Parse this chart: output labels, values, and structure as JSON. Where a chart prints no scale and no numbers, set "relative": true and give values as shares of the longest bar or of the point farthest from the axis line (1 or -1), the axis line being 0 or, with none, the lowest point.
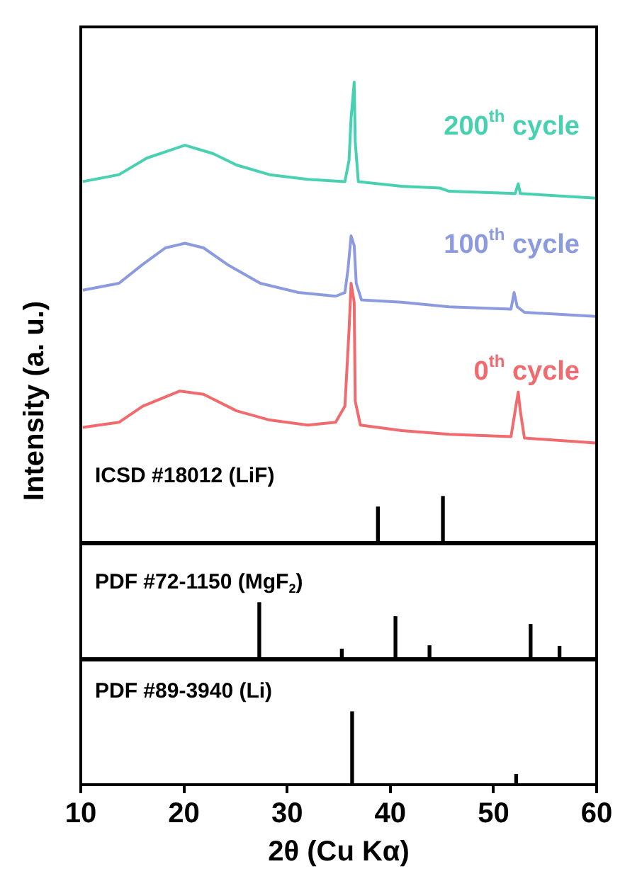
{
  "chart_data": [
    {
      "type": "line",
      "relative": true,
      "ylabel": "Intensity (a. u.)",
      "xlim": [
        10,
        60
      ],
      "xticks": [
        10,
        20,
        30,
        40,
        50,
        60
      ],
      "tick_labels": false,
      "series": [
        {
          "name": "200$^{th}$ cycle",
          "color": "#48d1b0",
          "x": [
            10.2,
            13.7,
            16.4,
            20.1,
            22.8,
            25.1,
            28.3,
            32.0,
            35.6,
            36.0,
            36.2,
            36.5,
            36.6,
            36.9,
            41.1,
            44.8,
            45.7,
            52.1,
            52.4,
            52.6,
            59.9
          ],
          "values": [
            0.784,
            0.799,
            0.835,
            0.863,
            0.845,
            0.82,
            0.799,
            0.789,
            0.784,
            0.83,
            0.922,
            1,
            0.871,
            0.784,
            0.774,
            0.77,
            0.763,
            0.758,
            0.779,
            0.758,
            0.748
          ]
        },
        {
          "name": "100$^{th}$ cycle",
          "color": "#8c9be0",
          "x": [
            10.2,
            13.7,
            16.0,
            18.2,
            20.1,
            21.9,
            24.2,
            27.4,
            31.1,
            34.7,
            35.6,
            35.9,
            36.2,
            36.5,
            36.7,
            37.2,
            41.1,
            45.7,
            51.7,
            52.0,
            52.3,
            53.0,
            59.9
          ],
          "values": [
            0.548,
            0.563,
            0.604,
            0.64,
            0.65,
            0.64,
            0.604,
            0.563,
            0.543,
            0.535,
            0.543,
            0.594,
            0.666,
            0.645,
            0.563,
            0.527,
            0.522,
            0.512,
            0.507,
            0.543,
            0.512,
            0.5,
            0.491
          ]
        },
        {
          "name": "0$^{th}$ cycle",
          "color": "#f06a6e",
          "x": [
            10.2,
            13.7,
            16.0,
            19.6,
            21.9,
            25.1,
            28.3,
            32.0,
            34.7,
            35.6,
            36.0,
            36.2,
            36.5,
            36.6,
            37.1,
            41.1,
            45.7,
            51.7,
            52.1,
            52.4,
            52.6,
            53.0,
            59.9
          ],
          "values": [
            0.25,
            0.261,
            0.296,
            0.329,
            0.322,
            0.286,
            0.266,
            0.255,
            0.261,
            0.296,
            0.461,
            0.563,
            0.522,
            0.307,
            0.255,
            0.243,
            0.235,
            0.23,
            0.286,
            0.327,
            0.286,
            0.227,
            0.216
          ]
        },
        {
          "name": "ICSD #18012 (LiF)",
          "type": "bar",
          "color": "#000000",
          "x": [
            38.8,
            45.1
          ],
          "values": [
            0.077,
            0.1
          ]
        }
      ]
    },
    {
      "type": "bar",
      "relative": true,
      "xlim": [
        10,
        60
      ],
      "xticks": [
        10,
        20,
        30,
        40,
        50,
        60
      ],
      "tick_labels": false,
      "series": [
        {
          "name": "PDF #72-1150 (MgF$_{2}$)",
          "color": "#000000",
          "x": [
            27.3,
            35.3,
            40.5,
            43.8,
            53.6,
            56.4
          ],
          "values": [
            1,
            0.17,
            0.75,
            0.23,
            0.61,
            0.22
          ]
        }
      ]
    },
    {
      "type": "bar",
      "relative": true,
      "xlabel": "2θ (Cu Kα)",
      "xlim": [
        10,
        60
      ],
      "xticks": [
        10,
        20,
        30,
        40,
        50,
        60
      ],
      "tick_labels": "x",
      "series": [
        {
          "name": "PDF #89-3940 (Li)",
          "color": "#000000",
          "x": [
            36.3,
            52.2
          ],
          "values": [
            1,
            0.14
          ]
        }
      ]
    }
  ]
}
